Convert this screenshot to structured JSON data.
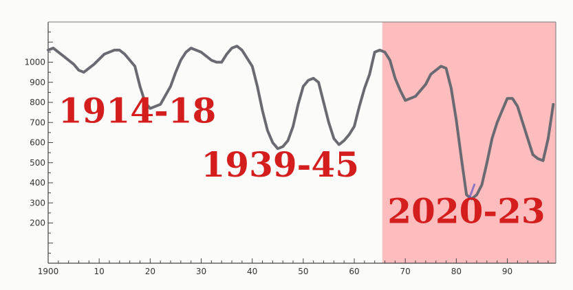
{
  "chart_data": {
    "type": "line",
    "title": "",
    "xlabel": "",
    "ylabel": "",
    "xlim": [
      1900,
      1999.5
    ],
    "ylim": [
      0,
      1200
    ],
    "x_ticks": [
      1900,
      1910,
      1920,
      1930,
      1940,
      1950,
      1960,
      1970,
      1980,
      1990
    ],
    "x_tick_labels": [
      "1900",
      "10",
      "20",
      "30",
      "40",
      "50",
      "60",
      "70",
      "80",
      "90"
    ],
    "y_ticks": [
      200,
      300,
      400,
      500,
      600,
      700,
      800,
      900,
      1000
    ],
    "y_tick_labels": [
      "200",
      "300",
      "400",
      "500",
      "600",
      "700",
      "800",
      "900",
      "1000"
    ],
    "grid": false,
    "line_color": "#6a6a72",
    "highlight": {
      "from": 1965.5,
      "to": 1999.5,
      "color": "#fdbcbd"
    },
    "series": [
      {
        "x": [
          1900,
          1901,
          1903,
          1905,
          1906,
          1907,
          1909,
          1911,
          1913,
          1914,
          1915,
          1917,
          1918,
          1919,
          1920,
          1922,
          1924,
          1925,
          1926,
          1927,
          1928,
          1930,
          1932,
          1933,
          1934,
          1935,
          1936,
          1937,
          1938,
          1940,
          1941,
          1942,
          1943,
          1944,
          1945,
          1946,
          1947,
          1948,
          1949,
          1950,
          1951,
          1952,
          1953,
          1954,
          1955,
          1956,
          1957,
          1958,
          1959,
          1960,
          1961,
          1962,
          1963,
          1964,
          1965,
          1966,
          1967,
          1968,
          1969,
          1970,
          1972,
          1974,
          1975,
          1976,
          1977,
          1978,
          1979,
          1980,
          1981,
          1982,
          1983,
          1984,
          1985,
          1986,
          1987,
          1988,
          1989,
          1990,
          1991,
          1992,
          1993,
          1994,
          1995,
          1996,
          1997,
          1998,
          1999
        ],
        "values": [
          1060,
          1070,
          1030,
          990,
          960,
          950,
          990,
          1040,
          1060,
          1060,
          1040,
          980,
          880,
          800,
          770,
          790,
          880,
          950,
          1010,
          1050,
          1070,
          1050,
          1010,
          1000,
          1000,
          1040,
          1070,
          1080,
          1060,
          980,
          880,
          760,
          660,
          600,
          570,
          580,
          610,
          680,
          790,
          880,
          910,
          920,
          900,
          800,
          700,
          620,
          590,
          610,
          640,
          680,
          780,
          870,
          940,
          1050,
          1060,
          1050,
          1010,
          920,
          860,
          810,
          830,
          890,
          940,
          960,
          980,
          970,
          870,
          710,
          520,
          340,
          320,
          340,
          390,
          500,
          620,
          700,
          760,
          820,
          820,
          780,
          700,
          620,
          540,
          520,
          510,
          620,
          790
        ]
      }
    ],
    "annotations": [
      {
        "text": "1914-18",
        "x": 1902,
        "y": 700
      },
      {
        "text": "1939-45",
        "x": 1930,
        "y": 430
      },
      {
        "text": "2020-23",
        "x": 1966.5,
        "y": 200
      }
    ]
  }
}
